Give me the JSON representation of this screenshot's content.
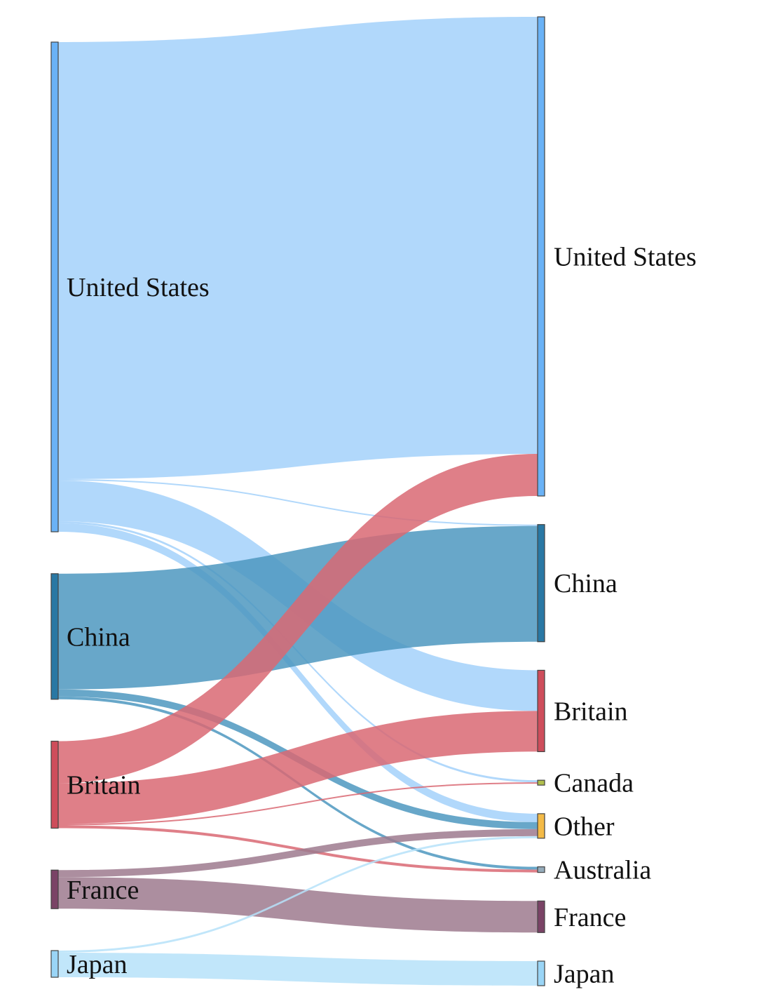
{
  "chart_data": {
    "type": "sankey",
    "title": "",
    "unit_note": "link widths read as relative flow magnitudes (estimated from the figure)",
    "sources": [
      {
        "id": "United States",
        "label": "United States",
        "color": "#5aaaf5"
      },
      {
        "id": "China",
        "label": "China",
        "color": "#12699a"
      },
      {
        "id": "Britain",
        "label": "Britain",
        "color": "#c93a49"
      },
      {
        "id": "France",
        "label": "France",
        "color": "#6b2f55"
      },
      {
        "id": "Japan",
        "label": "Japan",
        "color": "#8fd0f5"
      }
    ],
    "targets": [
      {
        "id": "United States",
        "label": "United States",
        "color": "#5aaaf5"
      },
      {
        "id": "China",
        "label": "China",
        "color": "#12699a"
      },
      {
        "id": "Britain",
        "label": "Britain",
        "color": "#c93a49"
      },
      {
        "id": "Canada",
        "label": "Canada",
        "color": "#a8b83a"
      },
      {
        "id": "Other",
        "label": "Other",
        "color": "#f2b233"
      },
      {
        "id": "Australia",
        "label": "Australia",
        "color": "#8aa3b4"
      },
      {
        "id": "France",
        "label": "France",
        "color": "#6b2f55"
      },
      {
        "id": "Japan",
        "label": "Japan",
        "color": "#8fd0f5"
      }
    ],
    "links": [
      {
        "source": "United States",
        "target": "United States",
        "value": 623,
        "color": "#a3d1fa"
      },
      {
        "source": "United States",
        "target": "China",
        "value": 2,
        "color": "#a3d1fa"
      },
      {
        "source": "United States",
        "target": "Britain",
        "value": 58,
        "color": "#a3d1fa"
      },
      {
        "source": "United States",
        "target": "Canada",
        "value": 3,
        "color": "#a3d1fa"
      },
      {
        "source": "United States",
        "target": "Other",
        "value": 12,
        "color": "#a3d1fa"
      },
      {
        "source": "China",
        "target": "China",
        "value": 165,
        "color": "#4d98c0"
      },
      {
        "source": "China",
        "target": "Other",
        "value": 10,
        "color": "#4d98c0"
      },
      {
        "source": "China",
        "target": "Australia",
        "value": 4,
        "color": "#4d98c0"
      },
      {
        "source": "Britain",
        "target": "United States",
        "value": 60,
        "color": "#d96873"
      },
      {
        "source": "Britain",
        "target": "Britain",
        "value": 58,
        "color": "#d96873"
      },
      {
        "source": "Britain",
        "target": "Canada",
        "value": 2,
        "color": "#d96873"
      },
      {
        "source": "Britain",
        "target": "Australia",
        "value": 4,
        "color": "#d96873"
      },
      {
        "source": "France",
        "target": "Other",
        "value": 10,
        "color": "#9e7a8e"
      },
      {
        "source": "France",
        "target": "France",
        "value": 45,
        "color": "#9e7a8e"
      },
      {
        "source": "Japan",
        "target": "Other",
        "value": 3,
        "color": "#b6e2f9"
      },
      {
        "source": "Japan",
        "target": "Japan",
        "value": 35,
        "color": "#b6e2f9"
      }
    ]
  }
}
